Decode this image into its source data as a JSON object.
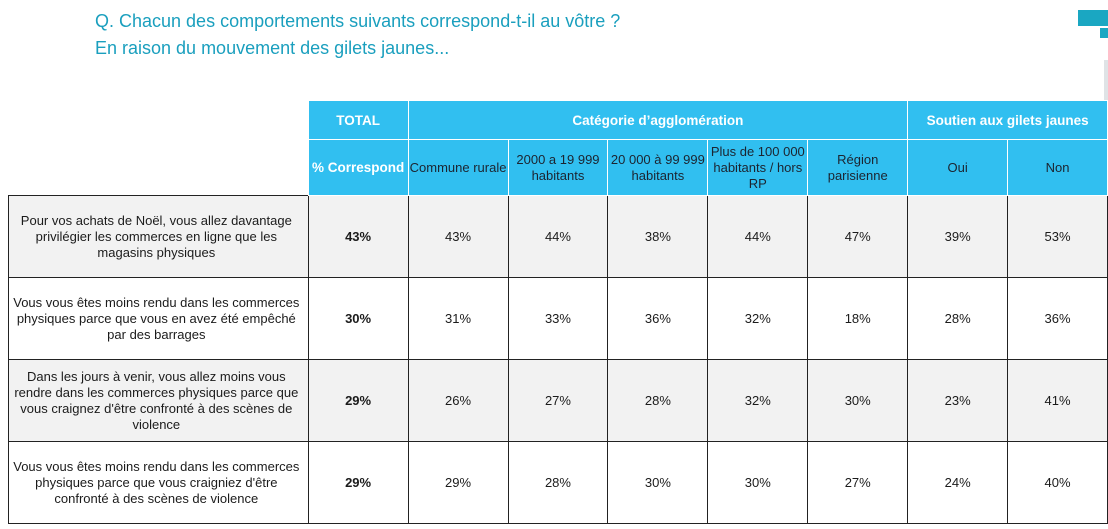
{
  "header": {
    "question": "Q. Chacun des comportements suivants correspond-t-il au vôtre ?",
    "subtitle": "En raison du mouvement des gilets jaunes..."
  },
  "table": {
    "group_headers": {
      "total": "TOTAL",
      "agglomeration": "Catégorie d’agglomération",
      "soutien": "Soutien aux gilets jaunes"
    },
    "columns": {
      "correspond": "% Correspond",
      "commune_rurale": "Commune rurale",
      "c2000": "2000 a 19 999 habitants",
      "c20000": "20 000 à 99 999 habitants",
      "c100000": "Plus de 100 000 habitants / hors RP",
      "region_parisienne": "Région parisienne",
      "oui": "Oui",
      "non": "Non"
    },
    "rows": [
      {
        "label": "Pour vos achats de Noël, vous allez davantage privilégier les commerces en ligne que les magasins physiques",
        "values": [
          "43%",
          "43%",
          "44%",
          "38%",
          "44%",
          "47%",
          "39%",
          "53%"
        ]
      },
      {
        "label": "Vous vous êtes moins rendu dans les commerces physiques parce que vous en avez été empêché par des barrages",
        "values": [
          "30%",
          "31%",
          "33%",
          "36%",
          "32%",
          "18%",
          "28%",
          "36%"
        ]
      },
      {
        "label": "Dans les jours à venir, vous allez moins vous rendre dans les commerces physiques parce que vous craignez d'être confronté à des scènes de violence",
        "values": [
          "29%",
          "26%",
          "27%",
          "28%",
          "32%",
          "30%",
          "23%",
          "41%"
        ]
      },
      {
        "label": "Vous vous êtes moins rendu dans les commerces physiques parce que vous craigniez d'être confronté à des scènes de violence",
        "values": [
          "29%",
          "29%",
          "28%",
          "30%",
          "30%",
          "27%",
          "24%",
          "40%"
        ]
      }
    ]
  },
  "colors": {
    "header_bg": "#31bff0",
    "title_color": "#1a9fbe",
    "row_shade": "#f2f2f2"
  }
}
